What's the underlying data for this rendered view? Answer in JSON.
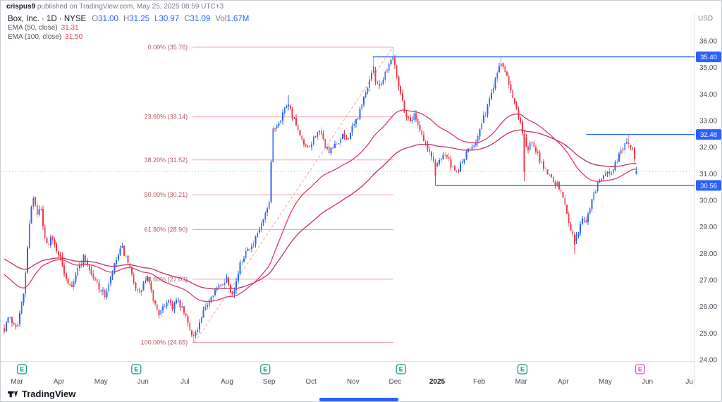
{
  "header": {
    "username": "crispus9",
    "publish_info": " published on TradingView.com, May 25, 2025 08:59 UTC+3"
  },
  "price_scale": {
    "currency": "USD"
  },
  "legend": {
    "symbol_line": "Box, Inc. · 1D · NYSE",
    "ohlc": [
      {
        "k": "O",
        "v": "31.00"
      },
      {
        "k": "H",
        "v": "31.25"
      },
      {
        "k": "L",
        "v": "30.97"
      },
      {
        "k": "C",
        "v": "31.09"
      },
      {
        "k": "Vol",
        "v": "1.67M"
      }
    ],
    "indicators": [
      {
        "label": "EMA (50, close)",
        "value": "31.31"
      },
      {
        "label": "EMA (100, close)",
        "value": "31.50"
      }
    ]
  },
  "footer": {
    "brand": "TradingView"
  },
  "chart_data": {
    "type": "candlestick",
    "symbol": "Box, Inc.",
    "exchange": "NYSE",
    "interval": "1D",
    "ylim": [
      23.8,
      36.4
    ],
    "grid": false,
    "y_ticks": [
      36,
      35,
      34,
      33,
      32,
      31,
      30,
      29,
      28,
      27,
      26,
      25,
      24
    ],
    "x_labels": [
      {
        "label": "Mar",
        "m": 0
      },
      {
        "label": "Apr",
        "m": 1
      },
      {
        "label": "May",
        "m": 2
      },
      {
        "label": "Jun",
        "m": 3
      },
      {
        "label": "Jul",
        "m": 4
      },
      {
        "label": "Aug",
        "m": 5
      },
      {
        "label": "Sep",
        "m": 6
      },
      {
        "label": "Oct",
        "m": 7
      },
      {
        "label": "Nov",
        "m": 8
      },
      {
        "label": "Dec",
        "m": 9
      },
      {
        "label": "2025",
        "m": 10,
        "bold": true
      },
      {
        "label": "Feb",
        "m": 11
      },
      {
        "label": "Mar",
        "m": 12
      },
      {
        "label": "Apr",
        "m": 13
      },
      {
        "label": "May",
        "m": 14
      },
      {
        "label": "Jun",
        "m": 15
      },
      {
        "label": "Ju",
        "m": 16
      }
    ],
    "price_line": 31.09,
    "rays": [
      {
        "price": 35.4,
        "m_start": 8.47
      },
      {
        "price": 32.48,
        "m_start": 13.55
      },
      {
        "price": 30.56,
        "m_start": 9.97
      }
    ],
    "fib": {
      "m_start": 4.18,
      "m_end": 8.96,
      "levels": [
        {
          "pct": "0.00%",
          "price": 35.76
        },
        {
          "pct": "23.60%",
          "price": 33.14
        },
        {
          "pct": "38.20%",
          "price": 31.52
        },
        {
          "pct": "50.00%",
          "price": 30.21
        },
        {
          "pct": "61.80%",
          "price": 28.9
        },
        {
          "pct": "78.60%",
          "price": 27.03
        },
        {
          "pct": "100.00%",
          "price": 24.65
        }
      ]
    },
    "trend_line": {
      "m1": 4.23,
      "p1": 24.65,
      "m2": 8.94,
      "p2": 35.76
    },
    "emas": [
      {
        "period": 50,
        "start": 27.3,
        "value": 31.31,
        "color": "#e53565"
      },
      {
        "period": 100,
        "start": 27.85,
        "value": 31.5,
        "color": "#c2305a"
      }
    ],
    "seed": 7,
    "m_first": -0.3,
    "m_last": 14.78,
    "candle_step": 0.046,
    "candle_anchors": [
      [
        -0.3,
        25.2
      ],
      [
        -0.2,
        25.6
      ],
      [
        -0.1,
        25.4
      ],
      [
        0.0,
        25.3
      ],
      [
        0.08,
        25.8
      ],
      [
        0.16,
        26.5
      ],
      [
        0.24,
        27.9
      ],
      [
        0.32,
        29.7
      ],
      [
        0.4,
        30.1
      ],
      [
        0.48,
        29.4
      ],
      [
        0.56,
        29.8
      ],
      [
        0.64,
        28.7
      ],
      [
        0.72,
        28.3
      ],
      [
        0.8,
        28.6
      ],
      [
        0.9,
        28.3
      ],
      [
        1.0,
        28.0
      ],
      [
        1.1,
        27.4
      ],
      [
        1.2,
        27.0
      ],
      [
        1.3,
        26.8
      ],
      [
        1.4,
        27.2
      ],
      [
        1.5,
        27.6
      ],
      [
        1.6,
        27.9
      ],
      [
        1.7,
        27.5
      ],
      [
        1.8,
        27.1
      ],
      [
        1.9,
        26.9
      ],
      [
        2.0,
        26.6
      ],
      [
        2.1,
        26.4
      ],
      [
        2.2,
        26.9
      ],
      [
        2.3,
        27.4
      ],
      [
        2.4,
        27.9
      ],
      [
        2.5,
        28.2
      ],
      [
        2.6,
        27.8
      ],
      [
        2.7,
        27.3
      ],
      [
        2.8,
        26.9
      ],
      [
        2.9,
        26.4
      ],
      [
        3.0,
        26.8
      ],
      [
        3.1,
        27.1
      ],
      [
        3.2,
        26.5
      ],
      [
        3.3,
        26.0
      ],
      [
        3.4,
        25.7
      ],
      [
        3.5,
        26.0
      ],
      [
        3.6,
        26.3
      ],
      [
        3.7,
        26.0
      ],
      [
        3.8,
        26.2
      ],
      [
        3.9,
        26.0
      ],
      [
        4.0,
        25.7
      ],
      [
        4.1,
        25.2
      ],
      [
        4.2,
        24.9
      ],
      [
        4.3,
        25.1
      ],
      [
        4.4,
        25.6
      ],
      [
        4.5,
        26.0
      ],
      [
        4.6,
        26.4
      ],
      [
        4.7,
        26.6
      ],
      [
        4.8,
        26.7
      ],
      [
        4.9,
        26.9
      ],
      [
        5.0,
        27.1
      ],
      [
        5.1,
        26.5
      ],
      [
        5.2,
        26.8
      ],
      [
        5.3,
        27.5
      ],
      [
        5.4,
        27.9
      ],
      [
        5.5,
        28.3
      ],
      [
        5.6,
        28.2
      ],
      [
        5.7,
        28.6
      ],
      [
        5.8,
        29.0
      ],
      [
        5.9,
        29.4
      ],
      [
        6.02,
        29.9
      ],
      [
        6.07,
        32.6
      ],
      [
        6.15,
        32.8
      ],
      [
        6.25,
        33.0
      ],
      [
        6.35,
        33.4
      ],
      [
        6.45,
        33.7
      ],
      [
        6.55,
        33.2
      ],
      [
        6.65,
        32.8
      ],
      [
        6.75,
        32.3
      ],
      [
        6.85,
        32.0
      ],
      [
        6.95,
        31.9
      ],
      [
        7.05,
        32.3
      ],
      [
        7.15,
        32.6
      ],
      [
        7.25,
        32.4
      ],
      [
        7.35,
        32.0
      ],
      [
        7.45,
        31.8
      ],
      [
        7.55,
        32.0
      ],
      [
        7.65,
        32.2
      ],
      [
        7.75,
        32.4
      ],
      [
        7.85,
        32.3
      ],
      [
        7.95,
        32.6
      ],
      [
        8.05,
        32.9
      ],
      [
        8.15,
        33.3
      ],
      [
        8.25,
        33.8
      ],
      [
        8.35,
        34.3
      ],
      [
        8.45,
        34.9
      ],
      [
        8.55,
        34.5
      ],
      [
        8.65,
        34.3
      ],
      [
        8.75,
        34.8
      ],
      [
        8.85,
        35.1
      ],
      [
        8.95,
        35.5
      ],
      [
        9.05,
        34.6
      ],
      [
        9.15,
        33.9
      ],
      [
        9.25,
        33.2
      ],
      [
        9.35,
        33.0
      ],
      [
        9.45,
        33.2
      ],
      [
        9.55,
        32.9
      ],
      [
        9.65,
        32.4
      ],
      [
        9.75,
        32.0
      ],
      [
        9.85,
        31.7
      ],
      [
        9.95,
        31.3
      ],
      [
        10.05,
        31.5
      ],
      [
        10.15,
        31.8
      ],
      [
        10.25,
        31.6
      ],
      [
        10.35,
        31.2
      ],
      [
        10.45,
        31.0
      ],
      [
        10.55,
        31.3
      ],
      [
        10.65,
        31.6
      ],
      [
        10.75,
        31.9
      ],
      [
        10.85,
        32.1
      ],
      [
        10.95,
        32.3
      ],
      [
        11.05,
        32.8
      ],
      [
        11.15,
        33.3
      ],
      [
        11.25,
        33.8
      ],
      [
        11.35,
        34.4
      ],
      [
        11.45,
        35.0
      ],
      [
        11.55,
        35.2
      ],
      [
        11.65,
        34.8
      ],
      [
        11.75,
        34.2
      ],
      [
        11.85,
        33.6
      ],
      [
        11.95,
        33.0
      ],
      [
        12.05,
        32.5
      ],
      [
        12.15,
        31.9
      ],
      [
        12.25,
        32.2
      ],
      [
        12.35,
        31.8
      ],
      [
        12.45,
        31.5
      ],
      [
        12.55,
        31.2
      ],
      [
        12.65,
        31.0
      ],
      [
        12.75,
        30.8
      ],
      [
        12.85,
        30.6
      ],
      [
        12.95,
        30.3
      ],
      [
        13.05,
        29.8
      ],
      [
        13.15,
        29.1
      ],
      [
        13.25,
        28.5
      ],
      [
        13.35,
        28.7
      ],
      [
        13.45,
        29.4
      ],
      [
        13.55,
        29.1
      ],
      [
        13.65,
        29.9
      ],
      [
        13.75,
        30.3
      ],
      [
        13.85,
        30.7
      ],
      [
        13.95,
        30.9
      ],
      [
        14.05,
        31.1
      ],
      [
        14.15,
        31.0
      ],
      [
        14.25,
        31.4
      ],
      [
        14.35,
        31.8
      ],
      [
        14.45,
        32.0
      ],
      [
        14.55,
        32.2
      ],
      [
        14.65,
        31.9
      ],
      [
        14.72,
        31.4
      ],
      [
        14.78,
        31.09
      ]
    ],
    "landmarks": [
      {
        "m": 4.22,
        "kind": "low",
        "price": 24.65
      },
      {
        "m": 6.45,
        "kind": "high",
        "price": 33.95
      },
      {
        "m": 8.47,
        "kind": "high",
        "price": 35.4
      },
      {
        "m": 8.95,
        "kind": "high",
        "price": 35.76
      },
      {
        "m": 9.97,
        "kind": "low",
        "price": 30.56
      },
      {
        "m": 11.5,
        "kind": "high",
        "price": 35.42
      },
      {
        "m": 12.07,
        "kind": "low",
        "price": 30.72
      },
      {
        "m": 13.28,
        "kind": "low",
        "price": 27.98
      },
      {
        "m": 14.58,
        "kind": "high",
        "price": 32.48
      }
    ],
    "last_candle": {
      "o": 31.0,
      "h": 31.25,
      "l": 30.97,
      "c": 31.09
    },
    "earnings_markers": [
      {
        "m": 0.12
      },
      {
        "m": 2.84
      },
      {
        "m": 5.91
      },
      {
        "m": 9.14
      },
      {
        "m": 12.03
      },
      {
        "m": 14.83,
        "upcoming": true
      }
    ],
    "colors": {
      "up": "#2962ff",
      "down": "#f23645",
      "ray": "#2962ff",
      "fib_line": "#f3a4aa",
      "fib_label": "#b25964",
      "price_line": "#b2b5be",
      "axis_text": "#4a4e59",
      "year_text": "#131722",
      "border": "#e0e3eb",
      "earnings_past": "#089981",
      "earnings_upcoming": "#e14cc3"
    }
  }
}
